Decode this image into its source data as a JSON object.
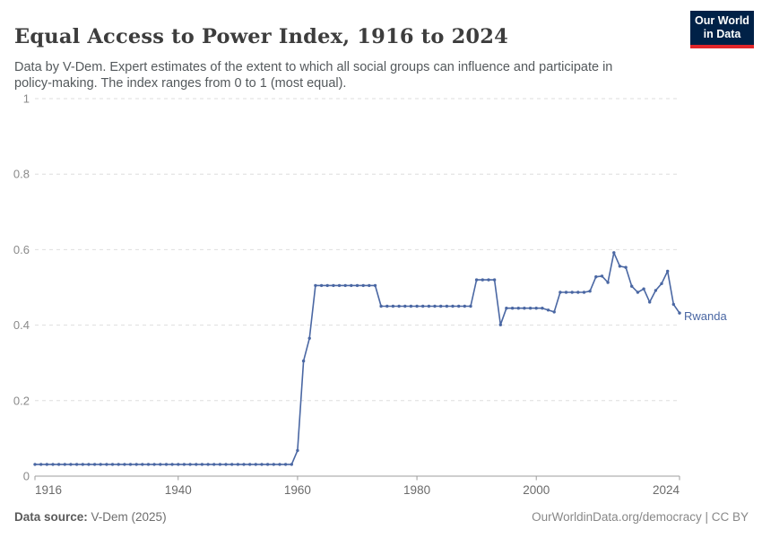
{
  "header": {
    "logo": {
      "line1": "Our World",
      "line2": "in Data"
    }
  },
  "footer": {
    "source_label": "Data source:",
    "source_value": " V-Dem (2025)",
    "credit": "OurWorldinData.org/democracy | CC BY"
  },
  "chart_data": {
    "type": "line",
    "title": "Equal Access to Power Index, 1916 to 2024",
    "subtitle": "Data by V-Dem. Expert estimates of the extent to which all social groups can influence and participate in policy-making. The index ranges from 0 to 1 (most equal).",
    "xlabel": "",
    "ylabel": "",
    "xlim": [
      1916,
      2024
    ],
    "ylim": [
      0,
      1
    ],
    "xticks": [
      1916,
      1940,
      1960,
      1980,
      2000,
      2024
    ],
    "yticks": [
      0,
      0.2,
      0.4,
      0.6,
      0.8,
      1
    ],
    "grid": "horizontal-dashed",
    "legend_position": "end-of-line-label",
    "colors": {
      "line": "#4a67a3",
      "grid": "#dedede",
      "axis": "#9c9c9c",
      "xtick_label": "#6b6b6b",
      "ytick_label": "#8a8a8a",
      "entity_label": "#4a67a3"
    },
    "series": [
      {
        "name": "Rwanda",
        "points": [
          [
            1916,
            0.031
          ],
          [
            1917,
            0.031
          ],
          [
            1918,
            0.031
          ],
          [
            1919,
            0.031
          ],
          [
            1920,
            0.031
          ],
          [
            1921,
            0.031
          ],
          [
            1922,
            0.031
          ],
          [
            1923,
            0.031
          ],
          [
            1924,
            0.031
          ],
          [
            1925,
            0.031
          ],
          [
            1926,
            0.031
          ],
          [
            1927,
            0.031
          ],
          [
            1928,
            0.031
          ],
          [
            1929,
            0.031
          ],
          [
            1930,
            0.031
          ],
          [
            1931,
            0.031
          ],
          [
            1932,
            0.031
          ],
          [
            1933,
            0.031
          ],
          [
            1934,
            0.031
          ],
          [
            1935,
            0.031
          ],
          [
            1936,
            0.031
          ],
          [
            1937,
            0.031
          ],
          [
            1938,
            0.031
          ],
          [
            1939,
            0.031
          ],
          [
            1940,
            0.031
          ],
          [
            1941,
            0.031
          ],
          [
            1942,
            0.031
          ],
          [
            1943,
            0.031
          ],
          [
            1944,
            0.031
          ],
          [
            1945,
            0.031
          ],
          [
            1946,
            0.031
          ],
          [
            1947,
            0.031
          ],
          [
            1948,
            0.031
          ],
          [
            1949,
            0.031
          ],
          [
            1950,
            0.031
          ],
          [
            1951,
            0.031
          ],
          [
            1952,
            0.031
          ],
          [
            1953,
            0.031
          ],
          [
            1954,
            0.031
          ],
          [
            1955,
            0.031
          ],
          [
            1956,
            0.031
          ],
          [
            1957,
            0.031
          ],
          [
            1958,
            0.031
          ],
          [
            1959,
            0.031
          ],
          [
            1960,
            0.068
          ],
          [
            1961,
            0.305
          ],
          [
            1962,
            0.365
          ],
          [
            1963,
            0.505
          ],
          [
            1964,
            0.505
          ],
          [
            1965,
            0.505
          ],
          [
            1966,
            0.505
          ],
          [
            1967,
            0.505
          ],
          [
            1968,
            0.505
          ],
          [
            1969,
            0.505
          ],
          [
            1970,
            0.505
          ],
          [
            1971,
            0.505
          ],
          [
            1972,
            0.505
          ],
          [
            1973,
            0.505
          ],
          [
            1974,
            0.45
          ],
          [
            1975,
            0.45
          ],
          [
            1976,
            0.45
          ],
          [
            1977,
            0.45
          ],
          [
            1978,
            0.45
          ],
          [
            1979,
            0.45
          ],
          [
            1980,
            0.45
          ],
          [
            1981,
            0.45
          ],
          [
            1982,
            0.45
          ],
          [
            1983,
            0.45
          ],
          [
            1984,
            0.45
          ],
          [
            1985,
            0.45
          ],
          [
            1986,
            0.45
          ],
          [
            1987,
            0.45
          ],
          [
            1988,
            0.45
          ],
          [
            1989,
            0.45
          ],
          [
            1990,
            0.52
          ],
          [
            1991,
            0.52
          ],
          [
            1992,
            0.52
          ],
          [
            1993,
            0.52
          ],
          [
            1994,
            0.401
          ],
          [
            1995,
            0.445
          ],
          [
            1996,
            0.445
          ],
          [
            1997,
            0.445
          ],
          [
            1998,
            0.445
          ],
          [
            1999,
            0.445
          ],
          [
            2000,
            0.445
          ],
          [
            2001,
            0.445
          ],
          [
            2002,
            0.44
          ],
          [
            2003,
            0.435
          ],
          [
            2004,
            0.487
          ],
          [
            2005,
            0.487
          ],
          [
            2006,
            0.487
          ],
          [
            2007,
            0.487
          ],
          [
            2008,
            0.487
          ],
          [
            2009,
            0.49
          ],
          [
            2010,
            0.528
          ],
          [
            2011,
            0.53
          ],
          [
            2012,
            0.513
          ],
          [
            2013,
            0.592
          ],
          [
            2014,
            0.556
          ],
          [
            2015,
            0.553
          ],
          [
            2016,
            0.503
          ],
          [
            2017,
            0.487
          ],
          [
            2018,
            0.496
          ],
          [
            2019,
            0.461
          ],
          [
            2020,
            0.492
          ],
          [
            2021,
            0.51
          ],
          [
            2022,
            0.543
          ],
          [
            2023,
            0.455
          ],
          [
            2024,
            0.432
          ]
        ]
      }
    ]
  }
}
